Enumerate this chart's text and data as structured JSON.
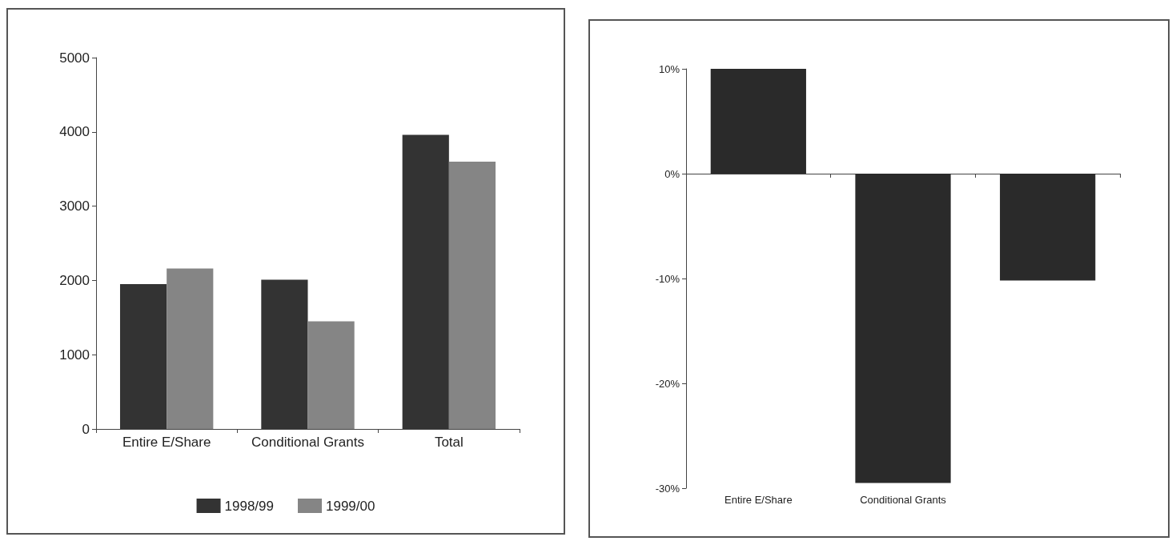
{
  "chart_data": [
    {
      "type": "bar",
      "categories": [
        "Entire E/Share",
        "Conditional Grants",
        "Total"
      ],
      "series": [
        {
          "name": "1998/99",
          "color": "#333333",
          "values": [
            1950,
            2010,
            3960
          ]
        },
        {
          "name": "1999/00",
          "color": "#858585",
          "values": [
            2160,
            1450,
            3600
          ]
        }
      ],
      "ylim": [
        0,
        5000
      ],
      "yticks": [
        0,
        1000,
        2000,
        3000,
        4000,
        5000
      ],
      "grid": false,
      "legend": "bottom"
    },
    {
      "type": "bar",
      "categories": [
        "Entire E/Share",
        "Conditional Grants",
        null
      ],
      "series": [
        {
          "color": "#2a2a2a",
          "values": [
            10,
            -29.5,
            -10.2
          ]
        }
      ],
      "ylim": [
        -30,
        10
      ],
      "yticks": [
        {
          "value": -30,
          "label": "-30%"
        },
        {
          "value": -20,
          "label": "-20%"
        },
        {
          "value": -10,
          "label": "-10%"
        },
        {
          "value": 0,
          "label": "0%"
        },
        {
          "value": 10,
          "label": "10%"
        }
      ]
    }
  ]
}
